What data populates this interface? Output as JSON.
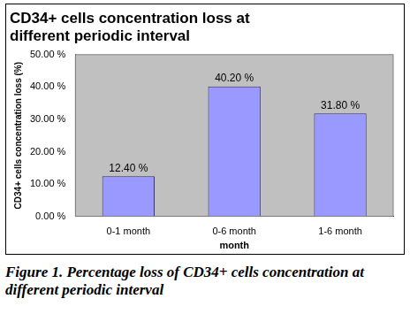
{
  "chart_data": {
    "type": "bar",
    "title": "CD34+ cells concentration loss at different periodic interval",
    "y_label": "CD34+ cells concentration loss (%)",
    "x_label": "month",
    "categories": [
      "0-1 month",
      "0-6 month",
      "1-6 month"
    ],
    "values": [
      12.4,
      40.2,
      31.8
    ],
    "value_labels": [
      "12.40 %",
      "40.20 %",
      "31.80 %"
    ],
    "data_labels": true,
    "color": "#9999ff",
    "ylim": [
      0,
      50
    ],
    "yticks": [
      {
        "value": 0,
        "label": "0.00 %"
      },
      {
        "value": 10,
        "label": "10.00 %"
      },
      {
        "value": 20,
        "label": "20.00 %"
      },
      {
        "value": 30,
        "label": "30.00 %"
      },
      {
        "value": 40,
        "label": "40.00 %"
      },
      {
        "value": 50,
        "label": "50.00 %"
      }
    ],
    "grid": false
  },
  "caption": "Figure 1.  Percentage loss of CD34+ cells concentration at different periodic interval"
}
